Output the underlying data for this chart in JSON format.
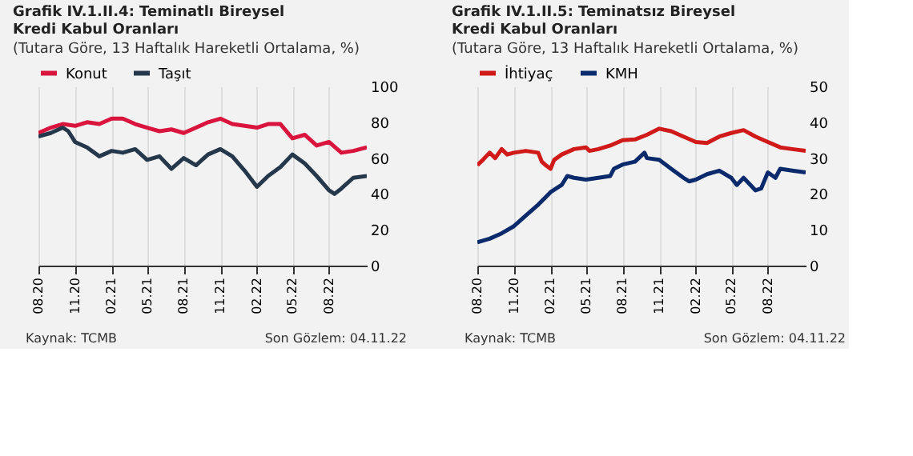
{
  "chart_data": [
    {
      "type": "line",
      "title": "Grafik IV.1.II.4: Teminatlı Bireysel Kredi Kabul Oranları",
      "subtitle": "(Tutara Göre, 13 Haftalık Hareketli Ortalama, %)",
      "annotations": [
        "Kaynak: TCMB",
        "Son Gözlem: 04.11.22"
      ],
      "legend": "top",
      "grid": "x",
      "line_style": "solid",
      "marker": "none",
      "xlim": [
        "2020-08-01",
        "2022-11-04"
      ],
      "xticks": [
        {
          "value": "2020-08-01",
          "label": "08.20"
        },
        {
          "value": "2020-11-01",
          "label": "11.20"
        },
        {
          "value": "2021-02-01",
          "label": "02.21"
        },
        {
          "value": "2021-05-01",
          "label": "05.21"
        },
        {
          "value": "2021-08-01",
          "label": "08.21"
        },
        {
          "value": "2021-11-01",
          "label": "11.21"
        },
        {
          "value": "2022-02-01",
          "label": "02.22"
        },
        {
          "value": "2022-05-01",
          "label": "05.22"
        },
        {
          "value": "2022-08-01",
          "label": "08.22"
        }
      ],
      "ylim": [
        0,
        100
      ],
      "yticks": [
        0,
        20,
        40,
        60,
        80,
        100
      ],
      "series": [
        {
          "name": "Konut",
          "color": "#d9143d",
          "x": [
            "2020-08-01",
            "2020-09-01",
            "2020-10-01",
            "2020-11-01",
            "2020-12-01",
            "2021-01-01",
            "2021-02-01",
            "2021-03-01",
            "2021-04-01",
            "2021-05-01",
            "2021-06-01",
            "2021-07-01",
            "2021-08-01",
            "2021-09-01",
            "2021-10-01",
            "2021-11-01",
            "2021-12-01",
            "2022-01-01",
            "2022-02-01",
            "2022-03-01",
            "2022-04-01",
            "2022-05-01",
            "2022-06-01",
            "2022-07-01",
            "2022-08-01",
            "2022-09-01",
            "2022-10-01",
            "2022-11-04"
          ],
          "values": [
            74,
            77,
            79,
            78,
            80,
            79,
            82,
            82,
            79,
            77,
            75,
            76,
            74,
            77,
            80,
            82,
            79,
            78,
            77,
            79,
            79,
            71,
            73,
            67,
            69,
            63,
            64,
            66
          ]
        },
        {
          "name": "Taşıt",
          "color": "#24374b",
          "x": [
            "2020-08-01",
            "2020-09-01",
            "2020-10-01",
            "2020-10-15",
            "2020-11-01",
            "2020-12-01",
            "2021-01-01",
            "2021-02-01",
            "2021-03-01",
            "2021-04-01",
            "2021-05-01",
            "2021-06-01",
            "2021-07-01",
            "2021-08-01",
            "2021-09-01",
            "2021-10-01",
            "2021-11-01",
            "2021-12-01",
            "2022-01-01",
            "2022-02-01",
            "2022-03-01",
            "2022-04-01",
            "2022-05-01",
            "2022-06-01",
            "2022-07-01",
            "2022-08-01",
            "2022-08-15",
            "2022-09-01",
            "2022-10-01",
            "2022-11-04"
          ],
          "values": [
            72,
            74,
            77,
            75,
            69,
            66,
            61,
            64,
            63,
            65,
            59,
            61,
            54,
            60,
            56,
            62,
            65,
            61,
            53,
            44,
            50,
            55,
            62,
            57,
            50,
            42,
            40,
            43,
            49,
            50
          ]
        }
      ]
    },
    {
      "type": "line",
      "title": "Grafik IV.1.II.5: Teminatsız Bireysel Kredi Kabul Oranları",
      "subtitle": "(Tutara Göre, 13 Haftalık Hareketli Ortalama, %)",
      "annotations": [
        "Kaynak: TCMB",
        "Son Gözlem: 04.11.22"
      ],
      "legend": "top",
      "grid": "x",
      "line_style": "solid",
      "marker": "none",
      "xlim": [
        "2020-08-01",
        "2022-11-04"
      ],
      "xticks": [
        {
          "value": "2020-08-01",
          "label": "08.20"
        },
        {
          "value": "2020-11-01",
          "label": "11.20"
        },
        {
          "value": "2021-02-01",
          "label": "02.21"
        },
        {
          "value": "2021-05-01",
          "label": "05.21"
        },
        {
          "value": "2021-08-01",
          "label": "08.21"
        },
        {
          "value": "2021-11-01",
          "label": "11.21"
        },
        {
          "value": "2022-02-01",
          "label": "02.22"
        },
        {
          "value": "2022-05-01",
          "label": "05.22"
        },
        {
          "value": "2022-08-01",
          "label": "08.22"
        }
      ],
      "ylim": [
        0,
        50
      ],
      "yticks": [
        0,
        10,
        20,
        30,
        40,
        50
      ],
      "series": [
        {
          "name": "İhtiyaç",
          "color": "#d01a1a",
          "x": [
            "2020-08-01",
            "2020-08-15",
            "2020-09-01",
            "2020-09-15",
            "2020-10-01",
            "2020-10-15",
            "2020-11-01",
            "2020-12-01",
            "2021-01-01",
            "2021-01-10",
            "2021-01-20",
            "2021-02-01",
            "2021-02-10",
            "2021-03-01",
            "2021-04-01",
            "2021-05-01",
            "2021-05-10",
            "2021-06-01",
            "2021-07-01",
            "2021-08-01",
            "2021-09-01",
            "2021-10-01",
            "2021-11-01",
            "2021-12-01",
            "2022-01-01",
            "2022-02-01",
            "2022-03-01",
            "2022-04-01",
            "2022-05-01",
            "2022-06-01",
            "2022-07-01",
            "2022-08-01",
            "2022-09-01",
            "2022-10-01",
            "2022-11-04"
          ],
          "values": [
            28,
            29.5,
            31.5,
            30,
            32.5,
            31,
            31.5,
            32,
            31.5,
            29,
            28,
            27,
            29.5,
            31,
            32.5,
            33,
            32,
            32.5,
            33.5,
            35,
            35.2,
            36.5,
            38.2,
            37.5,
            36,
            34.5,
            34.2,
            36,
            37,
            37.8,
            36,
            34.5,
            33,
            32.5,
            32
          ]
        },
        {
          "name": "KMH",
          "color": "#0a2a6b",
          "x": [
            "2020-08-01",
            "2020-09-01",
            "2020-10-01",
            "2020-11-01",
            "2020-12-01",
            "2021-01-01",
            "2021-02-01",
            "2021-03-01",
            "2021-03-15",
            "2021-04-01",
            "2021-05-01",
            "2021-06-01",
            "2021-07-01",
            "2021-07-10",
            "2021-08-01",
            "2021-09-01",
            "2021-09-25",
            "2021-10-01",
            "2021-11-01",
            "2021-12-01",
            "2022-01-01",
            "2022-01-15",
            "2022-02-01",
            "2022-03-01",
            "2022-04-01",
            "2022-05-01",
            "2022-05-15",
            "2022-06-01",
            "2022-07-01",
            "2022-07-15",
            "2022-08-01",
            "2022-08-20",
            "2022-09-01",
            "2022-10-01",
            "2022-11-04"
          ],
          "values": [
            6.5,
            7.5,
            9,
            11,
            14,
            17,
            20.5,
            22.5,
            25,
            24.5,
            24,
            24.5,
            25,
            27,
            28.2,
            29,
            31.5,
            30,
            29.5,
            27,
            24.5,
            23.5,
            24,
            25.5,
            26.5,
            24.5,
            22.5,
            24.5,
            21,
            21.5,
            26,
            24.5,
            27,
            26.5,
            26
          ]
        }
      ]
    }
  ]
}
